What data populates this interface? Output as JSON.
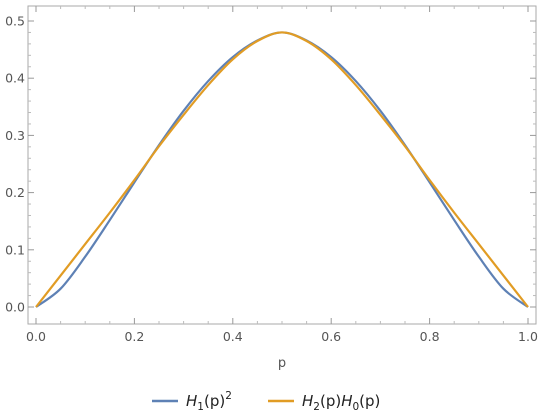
{
  "chart_data": {
    "type": "line",
    "title": "",
    "xlabel": "p",
    "ylabel": "",
    "xlim": [
      0,
      1
    ],
    "ylim": [
      0,
      0.5
    ],
    "x_ticks": [
      "0.0",
      "0.2",
      "0.4",
      "0.6",
      "0.8",
      "1.0"
    ],
    "y_ticks": [
      "0.0",
      "0.1",
      "0.2",
      "0.3",
      "0.4",
      "0.5"
    ],
    "grid": false,
    "legend_position": "bottom",
    "x": [
      0.0,
      0.05,
      0.1,
      0.15,
      0.2,
      0.25,
      0.3,
      0.35,
      0.4,
      0.45,
      0.5,
      0.55,
      0.6,
      0.65,
      0.7,
      0.75,
      0.8,
      0.85,
      0.9,
      0.95,
      1.0
    ],
    "series": [
      {
        "name": "H1(p)^2",
        "legend": {
          "base": "H",
          "sub": "1",
          "mid": "(p)",
          "sup": "2"
        },
        "color": "#5E81B5",
        "values": [
          0.0,
          0.032,
          0.088,
          0.152,
          0.218,
          0.283,
          0.343,
          0.395,
          0.437,
          0.466,
          0.48,
          0.466,
          0.437,
          0.395,
          0.343,
          0.283,
          0.218,
          0.152,
          0.088,
          0.032,
          0.0
        ]
      },
      {
        "name": "H2(p)H0(p)",
        "legend": {
          "base1": "H",
          "sub1": "2",
          "mid1": "(p)",
          "base2": "H",
          "sub2": "0",
          "mid2": "(p)"
        },
        "color": "#E19C24",
        "values": [
          0.0,
          0.055,
          0.11,
          0.165,
          0.222,
          0.281,
          0.336,
          0.388,
          0.433,
          0.465,
          0.48,
          0.465,
          0.433,
          0.388,
          0.336,
          0.281,
          0.222,
          0.165,
          0.11,
          0.055,
          0.0
        ]
      }
    ]
  }
}
